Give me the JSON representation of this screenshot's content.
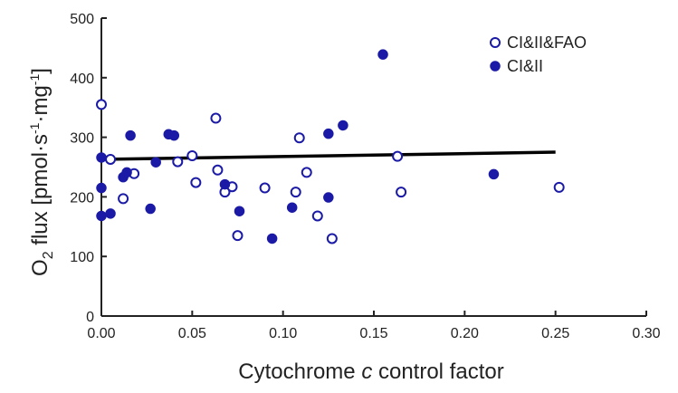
{
  "chart_data": {
    "type": "scatter",
    "xlabel_prefix": "Cytochrome ",
    "xlabel_italic": "c",
    "xlabel_suffix": " control factor",
    "ylabel_main": "O",
    "ylabel_sub": "2",
    "ylabel_rest": " flux [pmol·s",
    "ylabel_sup1": "-1",
    "ylabel_mid": "·mg",
    "ylabel_sup2": "-1",
    "ylabel_end": "]",
    "xlim": [
      0,
      0.3
    ],
    "ylim": [
      0,
      500
    ],
    "x_ticks": [
      0,
      0.05,
      0.1,
      0.15,
      0.2,
      0.25,
      0.3
    ],
    "x_tick_labels": [
      "0.00",
      "0.05",
      "0.10",
      "0.15",
      "0.20",
      "0.25",
      "0.30"
    ],
    "y_ticks": [
      0,
      100,
      200,
      300,
      400,
      500
    ],
    "y_tick_labels": [
      "0",
      "100",
      "200",
      "300",
      "400",
      "500"
    ],
    "grid": false,
    "legend_position": "top-right",
    "colors": {
      "marker": "#1a1aa6",
      "line": "#000000",
      "axis": "#222222"
    },
    "series": [
      {
        "name": "CI&II&FAO",
        "marker": "open-circle",
        "points": [
          [
            0.0,
            355
          ],
          [
            0.005,
            263
          ],
          [
            0.012,
            197
          ],
          [
            0.018,
            239
          ],
          [
            0.042,
            259
          ],
          [
            0.05,
            269
          ],
          [
            0.052,
            224
          ],
          [
            0.063,
            332
          ],
          [
            0.064,
            245
          ],
          [
            0.068,
            208
          ],
          [
            0.072,
            217
          ],
          [
            0.075,
            135
          ],
          [
            0.09,
            215
          ],
          [
            0.107,
            208
          ],
          [
            0.109,
            299
          ],
          [
            0.113,
            241
          ],
          [
            0.119,
            168
          ],
          [
            0.127,
            130
          ],
          [
            0.163,
            268
          ],
          [
            0.165,
            208
          ],
          [
            0.252,
            216
          ]
        ]
      },
      {
        "name": "CI&II",
        "marker": "filled-circle",
        "points": [
          [
            0.0,
            266
          ],
          [
            0.0,
            215
          ],
          [
            0.0,
            168
          ],
          [
            0.005,
            172
          ],
          [
            0.012,
            233
          ],
          [
            0.014,
            241
          ],
          [
            0.016,
            303
          ],
          [
            0.027,
            180
          ],
          [
            0.03,
            258
          ],
          [
            0.037,
            305
          ],
          [
            0.04,
            303
          ],
          [
            0.068,
            221
          ],
          [
            0.076,
            176
          ],
          [
            0.094,
            130
          ],
          [
            0.105,
            182
          ],
          [
            0.125,
            306
          ],
          [
            0.125,
            199
          ],
          [
            0.133,
            320
          ],
          [
            0.155,
            439
          ],
          [
            0.216,
            238
          ]
        ]
      }
    ],
    "trend_line": {
      "x": [
        0.0,
        0.25
      ],
      "y": [
        263,
        275
      ]
    }
  }
}
